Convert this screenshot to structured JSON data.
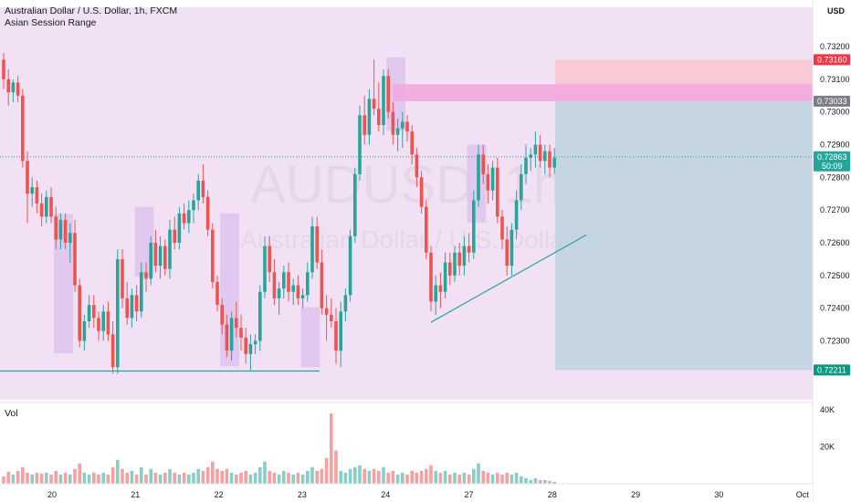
{
  "header": {
    "title": "Australian Dollar / U.S. Dollar, 1h, FXCM",
    "indicator": "Asian Session Range",
    "vol_label": "Vol"
  },
  "watermark": {
    "symbol": "AUDUSD, 1h",
    "name": "Australian Dollar / U.S. Dollar"
  },
  "currency": "USD",
  "colors": {
    "up": "#26a69a",
    "down": "#ef5350",
    "session_bg": "#f2e1f4",
    "session_box": "#dcc2ee",
    "stop_zone": "#f8c6cf",
    "pink_zone": "#f2a9dc",
    "target_zone": "#c2d5e0",
    "line": "#26a69a",
    "current_tag": "#26a69a",
    "resistance_tag": "#7b7e87",
    "stop_tag": "#f23645",
    "target_tag": "#089981"
  },
  "price_tags": {
    "stop": "0.73160",
    "resistance": "0.73033",
    "current": "0.72863",
    "countdown": "50:09",
    "target": "0.72211"
  },
  "chart_data": {
    "type": "candlestick",
    "title": "Australian Dollar / U.S. Dollar, 1h, FXCM",
    "x_ticks": [
      "20",
      "21",
      "22",
      "23",
      "24",
      "27",
      "28",
      "29",
      "30",
      "Oct"
    ],
    "y_ticks": [
      "0.72300",
      "0.72400",
      "0.72500",
      "0.72600",
      "0.72700",
      "0.72800",
      "0.72900",
      "0.73000",
      "0.73100",
      "0.73200"
    ],
    "ylim": [
      0.7212,
      0.7332
    ],
    "volume_ticks": [
      "20K",
      "40K"
    ],
    "volume_ylim": [
      0,
      42000
    ],
    "current_price": 0.72863,
    "annotations": {
      "stop_zone": [
        0.73033,
        0.7316
      ],
      "pink_zone": [
        0.73033,
        0.73085
      ],
      "target_zone": [
        0.72211,
        0.73033
      ],
      "support_line": 0.72208,
      "trendline_start": 0.72357,
      "trendline_end": 0.72624
    },
    "sessions": [
      {
        "high": 0.72688,
        "low": 0.72262
      },
      {
        "high": 0.7271,
        "low": 0.72496
      },
      {
        "high": 0.7269,
        "low": 0.72222
      },
      {
        "high": 0.72403,
        "low": 0.7222
      },
      {
        "high": 0.73167,
        "low": 0.72943
      },
      {
        "high": 0.729,
        "low": 0.72662
      }
    ],
    "candles": [
      [
        0.7316,
        0.7318,
        0.7307,
        0.731
      ],
      [
        0.731,
        0.7313,
        0.7302,
        0.7306
      ],
      [
        0.7306,
        0.731,
        0.7303,
        0.7309
      ],
      [
        0.7309,
        0.7311,
        0.7303,
        0.7305
      ],
      [
        0.7305,
        0.7307,
        0.7283,
        0.7285
      ],
      [
        0.7285,
        0.7288,
        0.7266,
        0.7275
      ],
      [
        0.7275,
        0.728,
        0.7271,
        0.7277
      ],
      [
        0.7277,
        0.7279,
        0.7269,
        0.7272
      ],
      [
        0.7272,
        0.7275,
        0.7265,
        0.7268
      ],
      [
        0.7268,
        0.7276,
        0.7266,
        0.7274
      ],
      [
        0.7274,
        0.7277,
        0.7266,
        0.7268
      ],
      [
        0.7268,
        0.7271,
        0.7258,
        0.7261
      ],
      [
        0.7261,
        0.7269,
        0.7258,
        0.7267
      ],
      [
        0.7267,
        0.7269,
        0.7258,
        0.726
      ],
      [
        0.726,
        0.7266,
        0.7254,
        0.7263
      ],
      [
        0.7263,
        0.7267,
        0.7245,
        0.7247
      ],
      [
        0.7247,
        0.7249,
        0.7228,
        0.723
      ],
      [
        0.723,
        0.7238,
        0.7227,
        0.7236
      ],
      [
        0.7236,
        0.7244,
        0.7234,
        0.7241
      ],
      [
        0.7241,
        0.7244,
        0.7234,
        0.7237
      ],
      [
        0.7237,
        0.7239,
        0.723,
        0.7233
      ],
      [
        0.7233,
        0.7241,
        0.723,
        0.7239
      ],
      [
        0.7239,
        0.7242,
        0.723,
        0.7232
      ],
      [
        0.7232,
        0.7236,
        0.722,
        0.7222
      ],
      [
        0.7222,
        0.7258,
        0.722,
        0.7255
      ],
      [
        0.7255,
        0.7258,
        0.724,
        0.7243
      ],
      [
        0.7243,
        0.7248,
        0.7235,
        0.7237
      ],
      [
        0.7237,
        0.7246,
        0.7234,
        0.7244
      ],
      [
        0.7244,
        0.7247,
        0.7236,
        0.7239
      ],
      [
        0.7239,
        0.7254,
        0.7237,
        0.7251
      ],
      [
        0.7251,
        0.7254,
        0.7245,
        0.7249
      ],
      [
        0.7249,
        0.7262,
        0.7247,
        0.726
      ],
      [
        0.726,
        0.7264,
        0.7251,
        0.7253
      ],
      [
        0.7253,
        0.7262,
        0.7249,
        0.7259
      ],
      [
        0.7259,
        0.7261,
        0.725,
        0.7252
      ],
      [
        0.7252,
        0.7267,
        0.7249,
        0.7264
      ],
      [
        0.7264,
        0.7268,
        0.7258,
        0.726
      ],
      [
        0.726,
        0.7271,
        0.7258,
        0.7269
      ],
      [
        0.7269,
        0.7272,
        0.7264,
        0.7266
      ],
      [
        0.7266,
        0.7273,
        0.7263,
        0.727
      ],
      [
        0.727,
        0.7275,
        0.7266,
        0.7273
      ],
      [
        0.7273,
        0.7281,
        0.727,
        0.7279
      ],
      [
        0.7279,
        0.7284,
        0.7272,
        0.7274
      ],
      [
        0.7274,
        0.7276,
        0.7262,
        0.7264
      ],
      [
        0.7264,
        0.7266,
        0.7246,
        0.7248
      ],
      [
        0.7248,
        0.725,
        0.7239,
        0.7241
      ],
      [
        0.7241,
        0.7243,
        0.7232,
        0.7235
      ],
      [
        0.7235,
        0.7238,
        0.7225,
        0.7227
      ],
      [
        0.7227,
        0.7239,
        0.7224,
        0.7237
      ],
      [
        0.7237,
        0.7242,
        0.7231,
        0.7234
      ],
      [
        0.7234,
        0.7238,
        0.7227,
        0.7231
      ],
      [
        0.7231,
        0.7234,
        0.7223,
        0.7226
      ],
      [
        0.7226,
        0.7232,
        0.7221,
        0.7229
      ],
      [
        0.7229,
        0.7232,
        0.7226,
        0.723
      ],
      [
        0.723,
        0.7247,
        0.7227,
        0.7245
      ],
      [
        0.7245,
        0.7262,
        0.7243,
        0.7259
      ],
      [
        0.7259,
        0.7262,
        0.7248,
        0.7251
      ],
      [
        0.7251,
        0.7255,
        0.7241,
        0.7243
      ],
      [
        0.7243,
        0.7248,
        0.7238,
        0.7246
      ],
      [
        0.7246,
        0.7253,
        0.7243,
        0.7251
      ],
      [
        0.7251,
        0.7254,
        0.7242,
        0.7245
      ],
      [
        0.7245,
        0.7249,
        0.7241,
        0.7247
      ],
      [
        0.7247,
        0.725,
        0.7241,
        0.7243
      ],
      [
        0.7243,
        0.7246,
        0.724,
        0.7244
      ],
      [
        0.7244,
        0.7254,
        0.7242,
        0.7251
      ],
      [
        0.7251,
        0.7268,
        0.7249,
        0.7265
      ],
      [
        0.7265,
        0.7268,
        0.7252,
        0.7254
      ],
      [
        0.7254,
        0.7258,
        0.7238,
        0.724
      ],
      [
        0.724,
        0.7244,
        0.723,
        0.7238
      ],
      [
        0.7238,
        0.7243,
        0.7234,
        0.7236
      ],
      [
        0.7236,
        0.724,
        0.7223,
        0.7227
      ],
      [
        0.7227,
        0.7242,
        0.7222,
        0.7239
      ],
      [
        0.7239,
        0.7246,
        0.7236,
        0.7244
      ],
      [
        0.7244,
        0.7264,
        0.7242,
        0.7262
      ],
      [
        0.7262,
        0.7283,
        0.726,
        0.7281
      ],
      [
        0.7281,
        0.7302,
        0.7279,
        0.7299
      ],
      [
        0.7299,
        0.7305,
        0.729,
        0.7293
      ],
      [
        0.7293,
        0.7307,
        0.729,
        0.7304
      ],
      [
        0.7304,
        0.7316,
        0.7299,
        0.7301
      ],
      [
        0.7301,
        0.7309,
        0.7294,
        0.7296
      ],
      [
        0.7296,
        0.7313,
        0.7293,
        0.7311
      ],
      [
        0.7311,
        0.7313,
        0.7298,
        0.73
      ],
      [
        0.73,
        0.7303,
        0.729,
        0.7293
      ],
      [
        0.7293,
        0.7298,
        0.7288,
        0.7295
      ],
      [
        0.7295,
        0.73,
        0.7289,
        0.7297
      ],
      [
        0.7297,
        0.7299,
        0.7291,
        0.7294
      ],
      [
        0.7294,
        0.7296,
        0.7284,
        0.7287
      ],
      [
        0.7287,
        0.7289,
        0.7277,
        0.728
      ],
      [
        0.728,
        0.7282,
        0.7269,
        0.7271
      ],
      [
        0.7271,
        0.7273,
        0.7255,
        0.7257
      ],
      [
        0.7257,
        0.7259,
        0.7239,
        0.7242
      ],
      [
        0.7242,
        0.725,
        0.7238,
        0.7247
      ],
      [
        0.7247,
        0.7251,
        0.724,
        0.7245
      ],
      [
        0.7245,
        0.7257,
        0.7243,
        0.7254
      ],
      [
        0.7254,
        0.7257,
        0.7247,
        0.725
      ],
      [
        0.725,
        0.7259,
        0.7248,
        0.7257
      ],
      [
        0.7257,
        0.726,
        0.725,
        0.7253
      ],
      [
        0.7253,
        0.7262,
        0.725,
        0.7259
      ],
      [
        0.7259,
        0.7263,
        0.7254,
        0.7257
      ],
      [
        0.7257,
        0.7276,
        0.7255,
        0.7273
      ],
      [
        0.7273,
        0.729,
        0.7271,
        0.7287
      ],
      [
        0.7287,
        0.729,
        0.7278,
        0.7281
      ],
      [
        0.7281,
        0.7284,
        0.7272,
        0.7276
      ],
      [
        0.7276,
        0.7285,
        0.7273,
        0.7283
      ],
      [
        0.7283,
        0.7286,
        0.7266,
        0.7268
      ],
      [
        0.7268,
        0.727,
        0.7258,
        0.7261
      ],
      [
        0.7261,
        0.7265,
        0.725,
        0.7253
      ],
      [
        0.7253,
        0.7266,
        0.725,
        0.7264
      ],
      [
        0.7264,
        0.7276,
        0.7261,
        0.7273
      ],
      [
        0.7273,
        0.7284,
        0.727,
        0.7281
      ],
      [
        0.7281,
        0.729,
        0.7278,
        0.7286
      ],
      [
        0.7286,
        0.7289,
        0.7282,
        0.7287
      ],
      [
        0.7287,
        0.7294,
        0.7283,
        0.729
      ],
      [
        0.729,
        0.7293,
        0.7283,
        0.7285
      ],
      [
        0.7285,
        0.729,
        0.7281,
        0.7288
      ],
      [
        0.7288,
        0.729,
        0.728,
        0.7283
      ],
      [
        0.7283,
        0.7289,
        0.7281,
        0.7286
      ]
    ],
    "volumes": [
      4000,
      6500,
      5000,
      7000,
      9000,
      6000,
      5000,
      6000,
      5500,
      6000,
      5000,
      7000,
      5000,
      6000,
      5000,
      8000,
      11000,
      6000,
      5000,
      6000,
      5000,
      6000,
      5000,
      9000,
      13000,
      8000,
      6000,
      7000,
      5000,
      9000,
      5000,
      8000,
      6000,
      5000,
      6000,
      8000,
      6000,
      5000,
      6000,
      5000,
      6000,
      8000,
      7000,
      9000,
      12000,
      8000,
      7000,
      8000,
      6000,
      5000,
      6000,
      7000,
      5000,
      6000,
      9000,
      12000,
      7000,
      6000,
      5000,
      7000,
      6000,
      5000,
      6000,
      5000,
      7000,
      9000,
      7000,
      8000,
      14000,
      38000,
      18000,
      7000,
      6000,
      8000,
      9000,
      10000,
      8000,
      7000,
      8000,
      7000,
      9000,
      6000,
      7000,
      5000,
      6000,
      5000,
      7000,
      6000,
      7000,
      8000,
      10000,
      7000,
      6000,
      7000,
      5000,
      6000,
      5000,
      6000,
      5000,
      8000,
      11000,
      7000,
      6000,
      5000,
      6000,
      5000,
      6000,
      5000,
      6000,
      4000,
      3000,
      2000,
      3000,
      2000,
      2000,
      1500,
      1000
    ]
  }
}
